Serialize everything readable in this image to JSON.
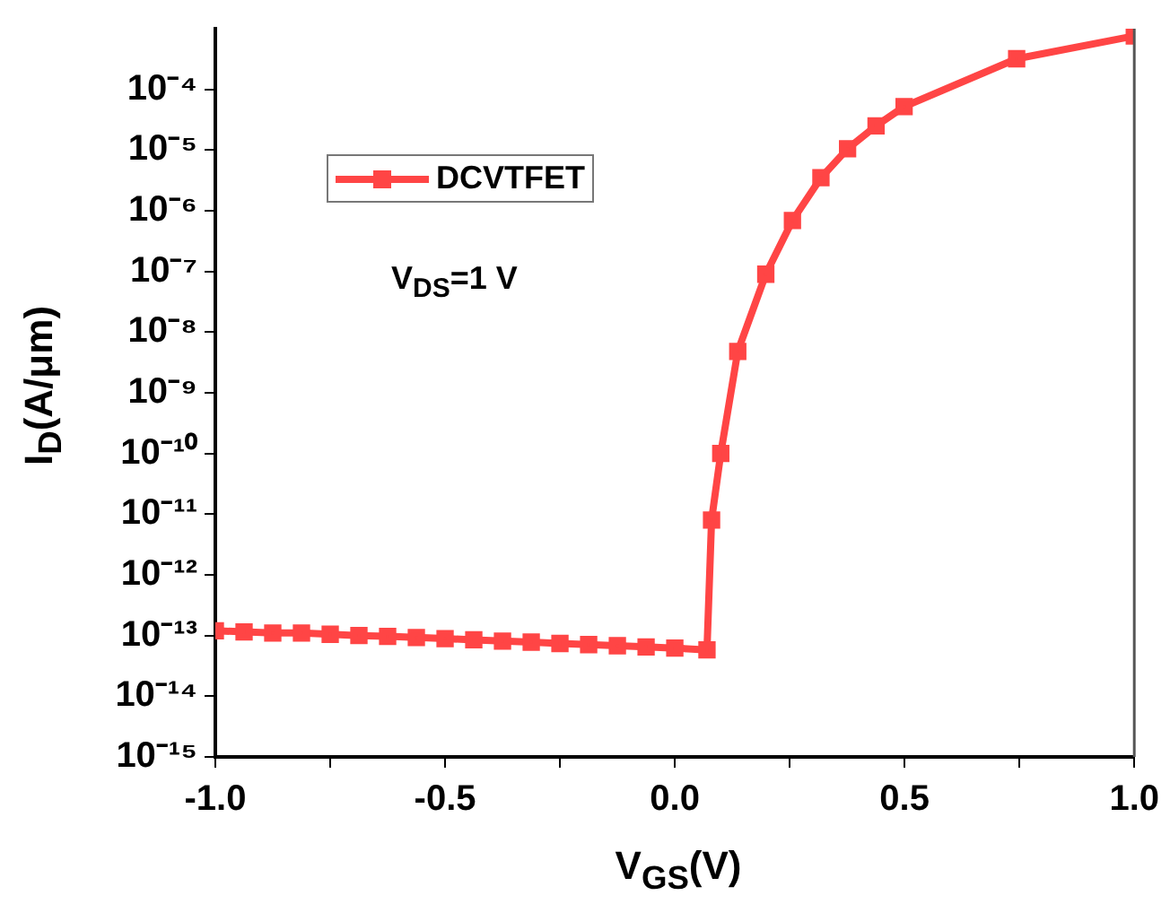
{
  "chart_data": {
    "type": "line",
    "xlabel": "V$_{GS}$(V)",
    "ylabel": "I$_{D}$(A/μm)",
    "annotations": [
      "V$_{DS}$=1 V"
    ],
    "log": "y",
    "grid": false,
    "legend": "top left",
    "marker": "square",
    "line_style": "solid",
    "xlim": [
      -1,
      1
    ],
    "xticks": [
      {
        "value": -1,
        "label": "-1.0"
      },
      {
        "value": -0.75,
        "label": null
      },
      {
        "value": -0.5,
        "label": "-0.5"
      },
      {
        "value": -0.25,
        "label": null
      },
      {
        "value": 0,
        "label": "0.0"
      },
      {
        "value": 0.25,
        "label": null
      },
      {
        "value": 0.5,
        "label": "0.5"
      },
      {
        "value": 0.75,
        "label": null
      },
      {
        "value": 1,
        "label": "1.0"
      }
    ],
    "ylim": [
      1e-15,
      0.001
    ],
    "yticks": [
      {
        "value": 1e-15,
        "label": "10⁻¹⁵"
      },
      {
        "value": 1e-14,
        "label": "10⁻¹⁴"
      },
      {
        "value": 1e-13,
        "label": "10⁻¹³"
      },
      {
        "value": 1e-12,
        "label": "10⁻¹²"
      },
      {
        "value": 1e-11,
        "label": "10⁻¹¹"
      },
      {
        "value": 1e-10,
        "label": "10⁻¹⁰"
      },
      {
        "value": 1e-09,
        "label": "10⁻⁹"
      },
      {
        "value": 1e-08,
        "label": "10⁻⁸"
      },
      {
        "value": 1e-07,
        "label": "10⁻⁷"
      },
      {
        "value": 1e-06,
        "label": "10⁻⁶"
      },
      {
        "value": 1e-05,
        "label": "10⁻⁵"
      },
      {
        "value": 0.0001,
        "label": "10⁻⁴"
      }
    ],
    "series": [
      {
        "name": "DCVTFET",
        "color": "#ff4545",
        "x": [
          -1,
          -0.9375,
          -0.875,
          -0.8125,
          -0.75,
          -0.6875,
          -0.625,
          -0.5625,
          -0.5,
          -0.4375,
          -0.375,
          -0.3125,
          -0.25,
          -0.1875,
          -0.125,
          -0.0625,
          0,
          0.07,
          0.08,
          0.1,
          0.137,
          0.198,
          0.256,
          0.318,
          0.376,
          0.438,
          0.499,
          0.744,
          1.0
        ],
        "values": [
          1.2e-13,
          1.15e-13,
          1.1e-13,
          1.1e-13,
          1.05e-13,
          1e-13,
          9.7e-14,
          9.3e-14,
          8.9e-14,
          8.5e-14,
          8.1e-14,
          7.8e-14,
          7.4e-14,
          7.1e-14,
          6.8e-14,
          6.5e-14,
          6.2e-14,
          5.8e-14,
          8e-12,
          1e-10,
          4.8e-09,
          9e-08,
          6.9e-07,
          3.5e-06,
          1.05e-05,
          2.5e-05,
          5.2e-05,
          0.00032,
          0.00076
        ]
      }
    ]
  }
}
